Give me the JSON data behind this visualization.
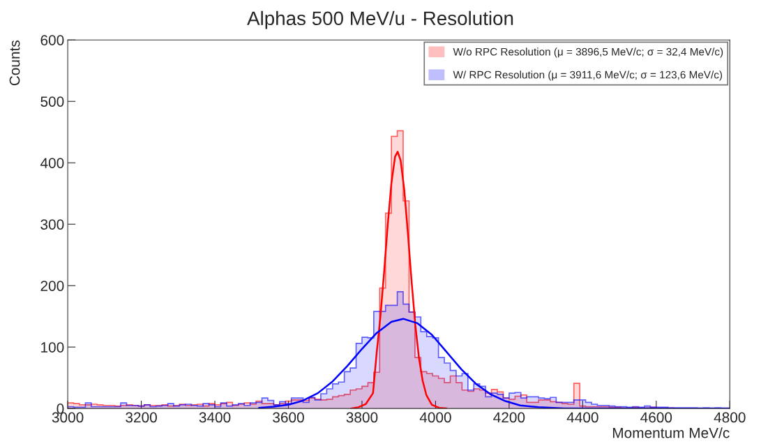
{
  "chart_data": {
    "type": "histogram",
    "title": "Alphas 500 MeV/u - Resolution",
    "xlabel": "Momentum MeV/c",
    "ylabel": "Counts",
    "bins": [
      3000,
      3016,
      3032,
      3048,
      3064,
      3080,
      3096,
      3112,
      3128,
      3144,
      3160,
      3176,
      3192,
      3208,
      3224,
      3240,
      3256,
      3272,
      3288,
      3304,
      3320,
      3336,
      3352,
      3368,
      3384,
      3400,
      3416,
      3432,
      3448,
      3464,
      3480,
      3496,
      3512,
      3528,
      3544,
      3560,
      3576,
      3592,
      3608,
      3624,
      3640,
      3656,
      3672,
      3688,
      3704,
      3720,
      3736,
      3752,
      3768,
      3784,
      3800,
      3816,
      3832,
      3848,
      3864,
      3880,
      3896,
      3912,
      3928,
      3944,
      3960,
      3976,
      3992,
      4008,
      4024,
      4040,
      4056,
      4072,
      4088,
      4104,
      4120,
      4136,
      4152,
      4168,
      4184,
      4200,
      4216,
      4232,
      4248,
      4264,
      4280,
      4296,
      4312,
      4328,
      4344,
      4360,
      4376,
      4392,
      4408,
      4424,
      4440,
      4456,
      4472,
      4488,
      4504,
      4520,
      4536,
      4552,
      4568,
      4584,
      4600,
      4616,
      4632,
      4648,
      4664,
      4680,
      4696,
      4712,
      4728,
      4744,
      4760,
      4776,
      4792
    ],
    "series": [
      {
        "name": "W/o RPC Resolution (μ = 3896,5 MeV/c; σ = 32,4 MeV/c)",
        "type": "histogram",
        "color": "#ff0000",
        "values": [
          9,
          8,
          6,
          6,
          7,
          6,
          5,
          5,
          4,
          5,
          6,
          5,
          4,
          6,
          5,
          5,
          6,
          4,
          5,
          7,
          5,
          6,
          7,
          4,
          8,
          6,
          8,
          10,
          5,
          7,
          9,
          7,
          12,
          8,
          8,
          6,
          8,
          12,
          14,
          14,
          13,
          17,
          15,
          14,
          15,
          19,
          21,
          23,
          30,
          32,
          36,
          42,
          59,
          196,
          318,
          443,
          452,
          338,
          157,
          83,
          60,
          57,
          53,
          49,
          42,
          53,
          42,
          30,
          28,
          32,
          30,
          25,
          31,
          27,
          17,
          15,
          20,
          22,
          10,
          10,
          14,
          14,
          11,
          10,
          8,
          7,
          41,
          4,
          3,
          3,
          3,
          3,
          2,
          2,
          1,
          1,
          2,
          1,
          1,
          2,
          1,
          1,
          1,
          0,
          0,
          0,
          0,
          0,
          0,
          0,
          0,
          0
        ]
      },
      {
        "name": "W/ RPC Resolution (μ = 3911,6 MeV/c; σ = 123,6 MeV/c)",
        "type": "histogram",
        "color": "#0000ff",
        "values": [
          3,
          2,
          2,
          9,
          3,
          3,
          3,
          3,
          3,
          9,
          5,
          5,
          4,
          6,
          3,
          4,
          5,
          8,
          4,
          6,
          7,
          5,
          4,
          8,
          6,
          3,
          9,
          4,
          6,
          8,
          5,
          9,
          10,
          17,
          13,
          6,
          11,
          8,
          17,
          17,
          10,
          18,
          14,
          24,
          32,
          40,
          43,
          60,
          66,
          106,
          116,
          115,
          158,
          158,
          168,
          168,
          190,
          170,
          157,
          149,
          125,
          117,
          115,
          83,
          74,
          62,
          53,
          57,
          30,
          40,
          36,
          19,
          25,
          23,
          17,
          25,
          26,
          17,
          19,
          19,
          17,
          16,
          18,
          10,
          10,
          10,
          14,
          14,
          10,
          7,
          5,
          5,
          4,
          3,
          3,
          2,
          3,
          2,
          4,
          2,
          2,
          2,
          1,
          1,
          1,
          1,
          1,
          0,
          1,
          0,
          1,
          0
        ]
      },
      {
        "type": "line",
        "color": "#ff0000",
        "x": [
          3770,
          3790,
          3810,
          3830,
          3840,
          3850,
          3860,
          3870,
          3880,
          3890,
          3897,
          3905,
          3915,
          3925,
          3935,
          3945,
          3955,
          3965,
          3975,
          3990,
          4010,
          4030
        ],
        "values": [
          0,
          2,
          7,
          25,
          91,
          149,
          221,
          299,
          367,
          410,
          418,
          404,
          356,
          284,
          206,
          136,
          82,
          45,
          22,
          6,
          1,
          0
        ]
      },
      {
        "type": "line",
        "color": "#0000ff",
        "x": [
          3520,
          3560,
          3600,
          3640,
          3680,
          3720,
          3760,
          3800,
          3840,
          3880,
          3912,
          3950,
          3990,
          4030,
          4070,
          4110,
          4150,
          4190,
          4230,
          4280,
          4350,
          4500,
          4800
        ],
        "values": [
          1,
          3,
          6,
          13,
          25,
          44,
          69,
          97,
          123,
          141,
          146,
          139,
          120,
          92,
          64,
          40,
          23,
          12,
          5,
          2,
          0,
          0,
          0
        ]
      }
    ],
    "xlim": [
      3000,
      4800
    ],
    "xticks": [
      3000,
      3200,
      3400,
      3600,
      3800,
      4000,
      4200,
      4400,
      4600,
      4800
    ],
    "ylim": [
      0,
      600
    ],
    "yticks": [
      0,
      100,
      200,
      300,
      400,
      500,
      600
    ],
    "legend": "top right"
  }
}
